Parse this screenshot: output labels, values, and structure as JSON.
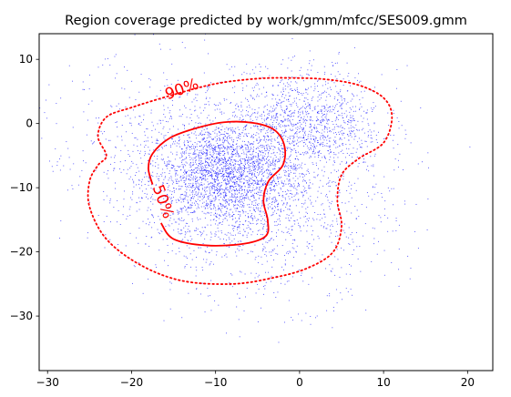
{
  "chart_data": {
    "type": "scatter",
    "title": "Region coverage predicted by work/gmm/mfcc/SES009.gmm",
    "xlabel": "",
    "ylabel": "",
    "xlim": [
      -31,
      23
    ],
    "ylim": [
      -38.5,
      14
    ],
    "x_ticks": [
      -30,
      -20,
      -10,
      0,
      10,
      20
    ],
    "y_ticks": [
      10,
      0,
      -10,
      -20,
      -30
    ],
    "grid": false,
    "legend": "none",
    "points": {
      "color": "#0000ff",
      "approx_count": 5000,
      "clusters": [
        {
          "center": [
            -9,
            -8
          ],
          "spread": [
            4.5,
            4.2
          ],
          "weight": 0.45
        },
        {
          "center": [
            1,
            0
          ],
          "spread": [
            4.5,
            4.0
          ],
          "weight": 0.22
        },
        {
          "center": [
            -4,
            -15
          ],
          "spread": [
            7.5,
            6.5
          ],
          "weight": 0.18
        },
        {
          "center": [
            -12,
            -4
          ],
          "spread": [
            10.0,
            7.5
          ],
          "weight": 0.15
        }
      ]
    },
    "contours": [
      {
        "label": "90%",
        "style": "dotted",
        "color": "#ff0000",
        "path": [
          [
            -23,
            -5
          ],
          [
            -24,
            -2
          ],
          [
            -23,
            1
          ],
          [
            -20,
            2.5
          ],
          [
            -15,
            4.5
          ],
          [
            -10,
            6.2
          ],
          [
            -5,
            7
          ],
          [
            -1,
            7.1
          ],
          [
            3,
            6.9
          ],
          [
            7,
            6
          ],
          [
            10,
            4
          ],
          [
            11,
            1
          ],
          [
            10,
            -3
          ],
          [
            7,
            -5.5
          ],
          [
            5,
            -8
          ],
          [
            4.5,
            -12
          ],
          [
            5,
            -16
          ],
          [
            4,
            -20
          ],
          [
            1,
            -22.5
          ],
          [
            -3,
            -24
          ],
          [
            -8,
            -25
          ],
          [
            -14,
            -24.5
          ],
          [
            -19,
            -22
          ],
          [
            -23,
            -18
          ],
          [
            -25,
            -13
          ],
          [
            -25,
            -9
          ],
          [
            -24,
            -6.5
          ]
        ],
        "label_pos": [
          -14,
          5.3
        ],
        "label_rotation": -20
      },
      {
        "label": "50%",
        "style": "solid",
        "color": "#ff0000",
        "path": [
          [
            -16.5,
            -15.5
          ],
          [
            -15,
            -18
          ],
          [
            -11,
            -19
          ],
          [
            -6.5,
            -18.7
          ],
          [
            -4,
            -17.5
          ],
          [
            -3.8,
            -15
          ],
          [
            -4.3,
            -12
          ],
          [
            -3.7,
            -9
          ],
          [
            -2,
            -6.5
          ],
          [
            -1.8,
            -3.5
          ],
          [
            -3,
            -1
          ],
          [
            -5.5,
            0.1
          ],
          [
            -9,
            0.2
          ],
          [
            -12.5,
            -0.8
          ],
          [
            -15.5,
            -2.3
          ],
          [
            -17.5,
            -4.7
          ],
          [
            -18,
            -7
          ],
          [
            -17.5,
            -9.5
          ]
        ],
        "label_pos": [
          -16.3,
          -12.2
        ],
        "label_rotation": 70
      }
    ]
  }
}
